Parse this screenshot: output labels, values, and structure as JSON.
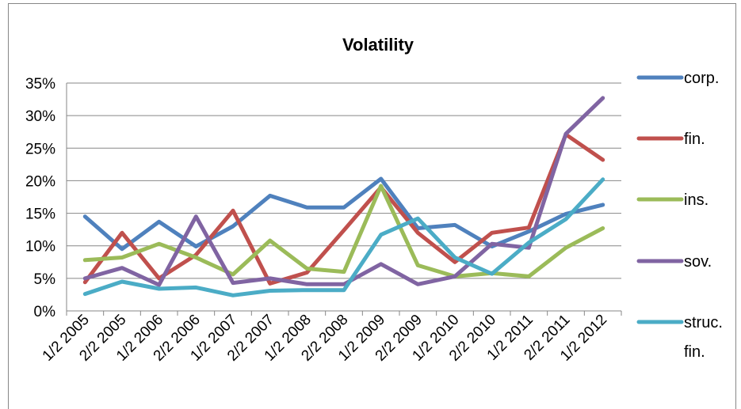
{
  "chart_data": {
    "type": "line",
    "title": "Volatility",
    "xlabel": "",
    "ylabel": "",
    "ylim": [
      0,
      35
    ],
    "y_ticks": [
      "0%",
      "5%",
      "10%",
      "15%",
      "20%",
      "25%",
      "30%",
      "35%"
    ],
    "categories": [
      "1/2 2005",
      "2/2 2005",
      "1/2 2006",
      "2/2 2006",
      "1/2 2007",
      "2/2 2007",
      "1/2 2008",
      "2/2 2008",
      "1/2 2009",
      "2/2 2009",
      "1/2 2010",
      "2/2 2010",
      "1/2 2011",
      "2/2 2011",
      "1/2 2012"
    ],
    "grid": "horizontal",
    "legend": "right",
    "series": [
      {
        "name": "corp.",
        "color": "#4f81bd",
        "values": [
          14.5,
          9.5,
          13.7,
          9.9,
          13.0,
          17.7,
          15.9,
          15.9,
          20.3,
          12.7,
          13.2,
          9.9,
          12.2,
          14.9,
          16.3
        ]
      },
      {
        "name": "fin.",
        "color": "#c0504d",
        "values": [
          4.4,
          12.0,
          5.0,
          8.6,
          15.4,
          4.2,
          5.9,
          12.4,
          19.0,
          12.0,
          7.5,
          12.0,
          12.8,
          27.1,
          23.2
        ]
      },
      {
        "name": "ins.",
        "color": "#9bbb59",
        "values": [
          7.8,
          8.2,
          10.3,
          8.2,
          5.6,
          10.8,
          6.5,
          6.0,
          19.2,
          7.0,
          5.3,
          5.8,
          5.3,
          9.7,
          12.7
        ]
      },
      {
        "name": "sov.",
        "color": "#8064a2",
        "values": [
          5.0,
          6.6,
          4.0,
          14.5,
          4.3,
          5.0,
          4.1,
          4.1,
          7.2,
          4.1,
          5.3,
          10.3,
          9.7,
          27.2,
          32.7
        ]
      },
      {
        "name": "struc. fin.",
        "color": "#4bacc6",
        "values": [
          2.6,
          4.5,
          3.4,
          3.6,
          2.4,
          3.1,
          3.2,
          3.2,
          11.7,
          14.2,
          8.2,
          5.7,
          10.5,
          14.1,
          20.2
        ]
      }
    ]
  }
}
